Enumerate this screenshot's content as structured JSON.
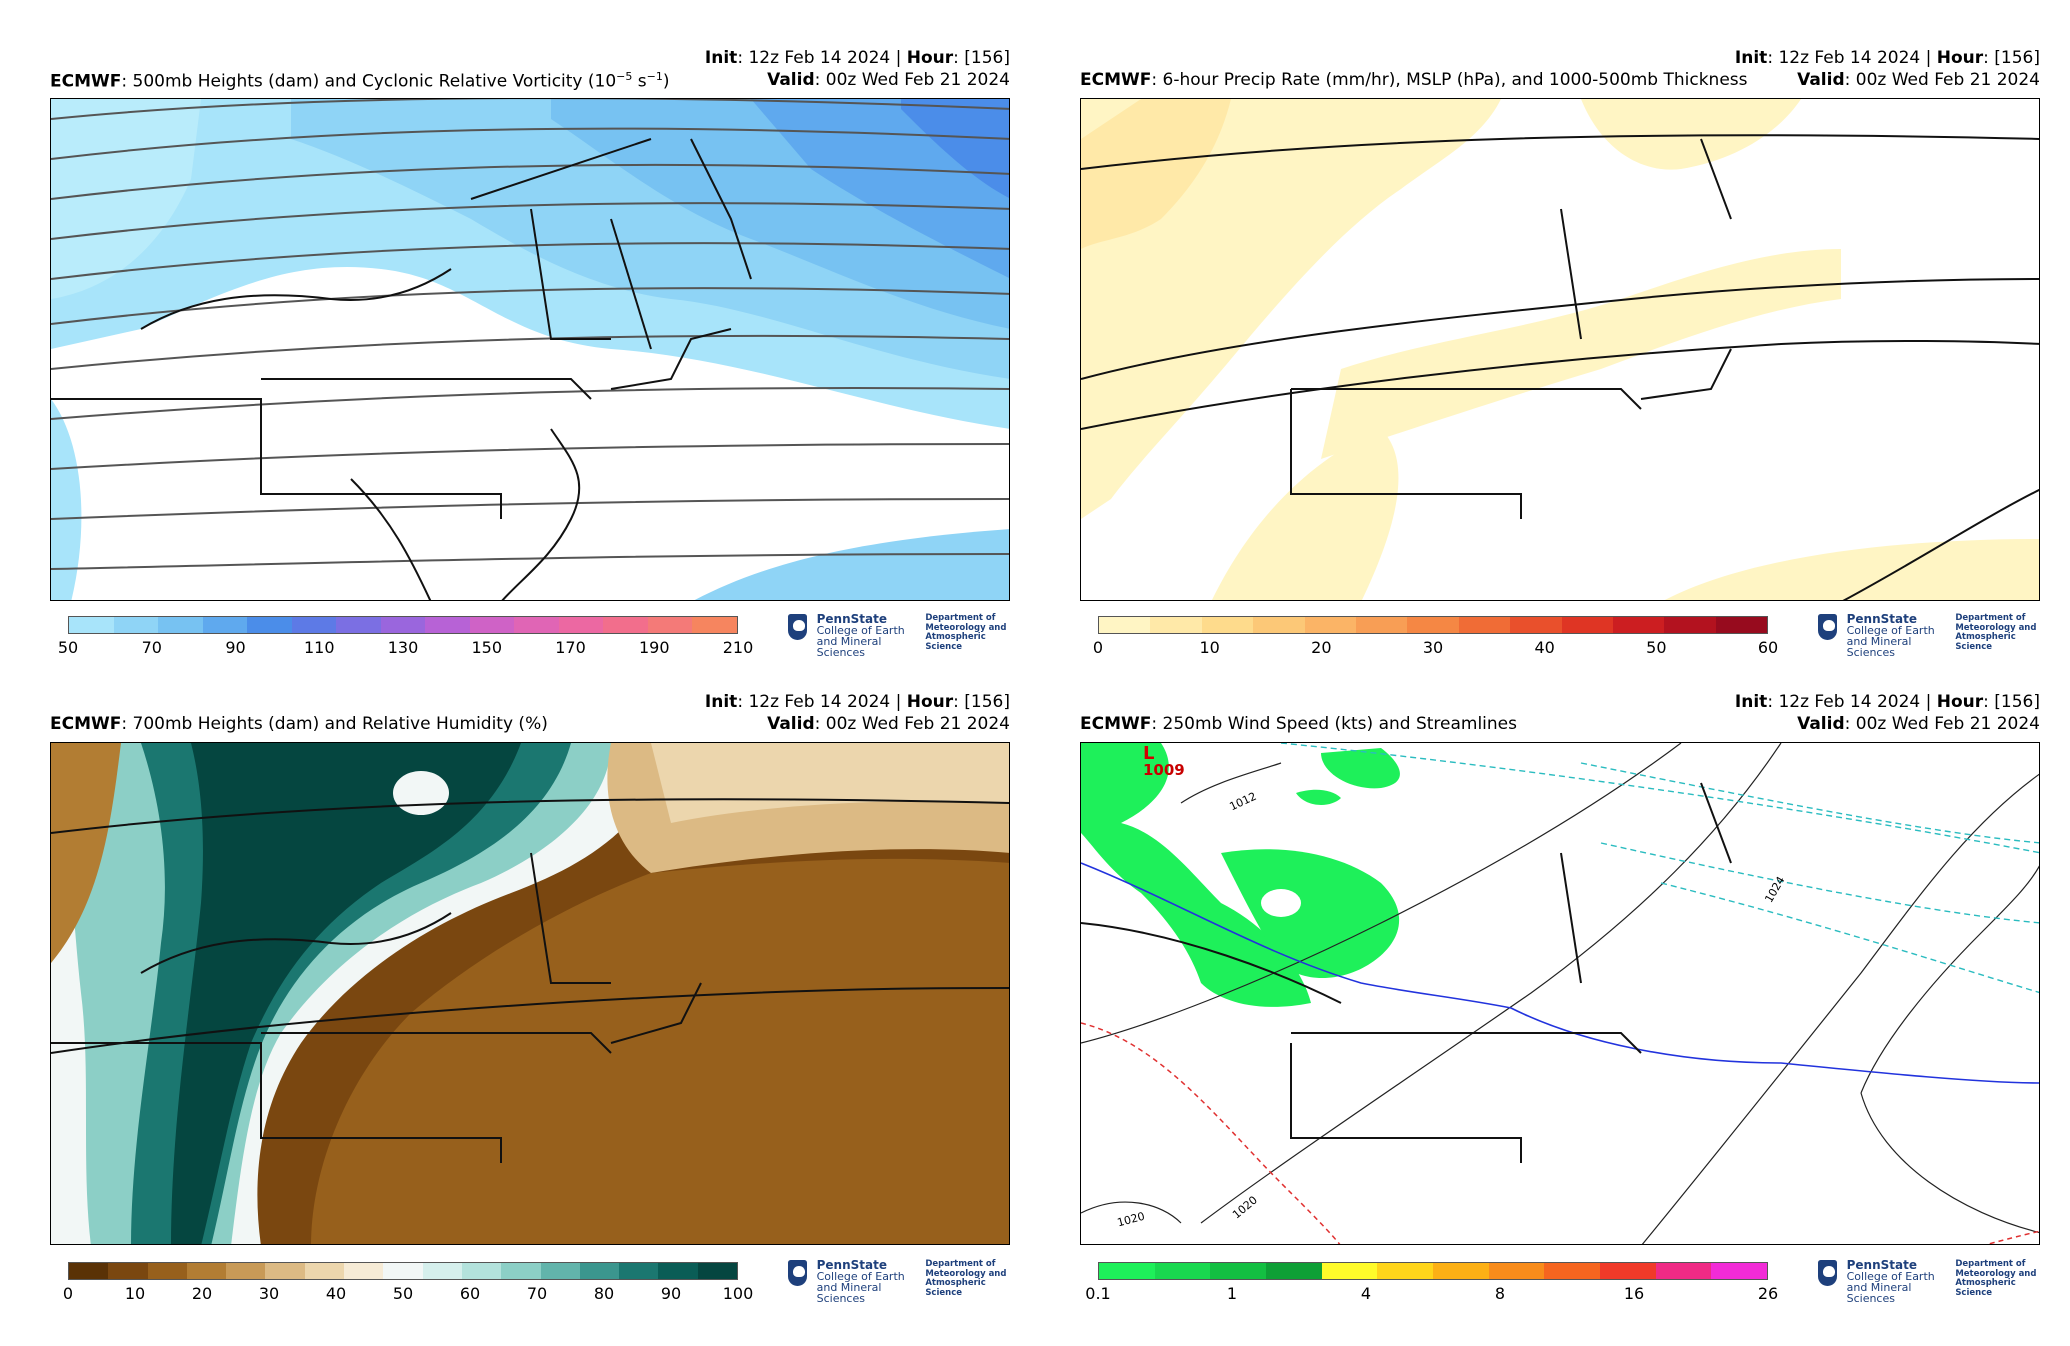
{
  "panels": [
    {
      "init_label": "Init",
      "init_value": ": 12z Feb 14 2024 | ",
      "hour_label": "Hour",
      "hour_value": ": [156]",
      "model": "ECMWF",
      "title": ": 500mb Heights (dam) and Cyclonic Relative Vorticity (10",
      "title_exp": "−5",
      "title_unit": " s",
      "title_exp2": "−1",
      "title_end": ")",
      "valid_label": "Valid",
      "valid_value": ": 00z Wed Feb 21 2024",
      "colorbar": {
        "colors": [
          "#a8e4fa",
          "#8fd4f6",
          "#77c2f2",
          "#5fa9ee",
          "#4b8de9",
          "#5d7ae6",
          "#7b6fe3",
          "#9a66dd",
          "#b762d6",
          "#cf62c6",
          "#e065b5",
          "#ec68a2",
          "#f26e8c",
          "#f47a78",
          "#f6855f"
        ],
        "ticks": [
          "50",
          "70",
          "90",
          "110",
          "130",
          "150",
          "170",
          "190",
          "210"
        ]
      },
      "map_fill": "vorticity"
    },
    {
      "init_label": "Init",
      "init_value": ": 12z Feb 14 2024 | ",
      "hour_label": "Hour",
      "hour_value": ": [156]",
      "model": "ECMWF",
      "title": ": 6-hour Precip Rate (mm/hr), MSLP (hPa), and 1000-500mb Thickness",
      "valid_label": "Valid",
      "valid_value": ": 00z Wed Feb 21 2024",
      "colorbar": {
        "colors": [
          "#fff5c4",
          "#ffe9a8",
          "#fedb8c",
          "#fcc877",
          "#fbb466",
          "#f89e55",
          "#f58744",
          "#f06c36",
          "#e9502c",
          "#df3524",
          "#cc1e21",
          "#b3121f",
          "#970b1e"
        ],
        "ticks": [
          "0",
          "10",
          "20",
          "30",
          "40",
          "50",
          "60"
        ]
      },
      "map_fill": "precip"
    },
    {
      "init_label": "Init",
      "init_value": ": 12z Feb 14 2024 | ",
      "hour_label": "Hour",
      "hour_value": ": [156]",
      "model": "ECMWF",
      "title": ": 700mb Heights (dam) and Relative Humidity (%)",
      "valid_label": "Valid",
      "valid_value": ": 00z Wed Feb 21 2024",
      "colorbar": {
        "colors": [
          "#5a3206",
          "#7a4710",
          "#97601c",
          "#b27d33",
          "#c89a57",
          "#dcba84",
          "#ecd6ad",
          "#f6ebd6",
          "#f2f7f6",
          "#d5efec",
          "#b3e2dc",
          "#8ccfc6",
          "#62b4ab",
          "#3b968e",
          "#1b7770",
          "#0a5d56",
          "#054640"
        ],
        "ticks": [
          "0",
          "10",
          "20",
          "30",
          "40",
          "50",
          "60",
          "70",
          "80",
          "90",
          "100"
        ]
      },
      "map_fill": "rh"
    },
    {
      "init_label": "Init",
      "init_value": ": 12z Feb 14 2024 | ",
      "hour_label": "Hour",
      "hour_value": ": [156]",
      "model": "ECMWF",
      "title": ": 250mb Wind Speed (kts) and Streamlines",
      "valid_label": "Valid",
      "valid_value": ": 00z Wed Feb 21 2024",
      "colorbar": {
        "colors": [
          "#1ef05a",
          "#19d84f",
          "#13bf42",
          "#0e9f36",
          "#fffb2a",
          "#ffd51a",
          "#fcb015",
          "#f88c1b",
          "#f5651f",
          "#f03a29",
          "#ef2a85",
          "#f22bd7"
        ],
        "ticks": [
          "0.1",
          "1",
          "4",
          "8",
          "16",
          "26"
        ]
      },
      "map_fill": "wind",
      "map_labels": {
        "low_marker": "L",
        "low_value": "1009",
        "isobars": [
          "1012",
          "1024",
          "1020",
          "1020"
        ]
      }
    }
  ],
  "logo": {
    "name": "PennState",
    "college": [
      "College of Earth",
      "and Mineral Sciences"
    ],
    "dept": [
      "Department of",
      "Meteorology and",
      "Atmospheric Science"
    ]
  }
}
